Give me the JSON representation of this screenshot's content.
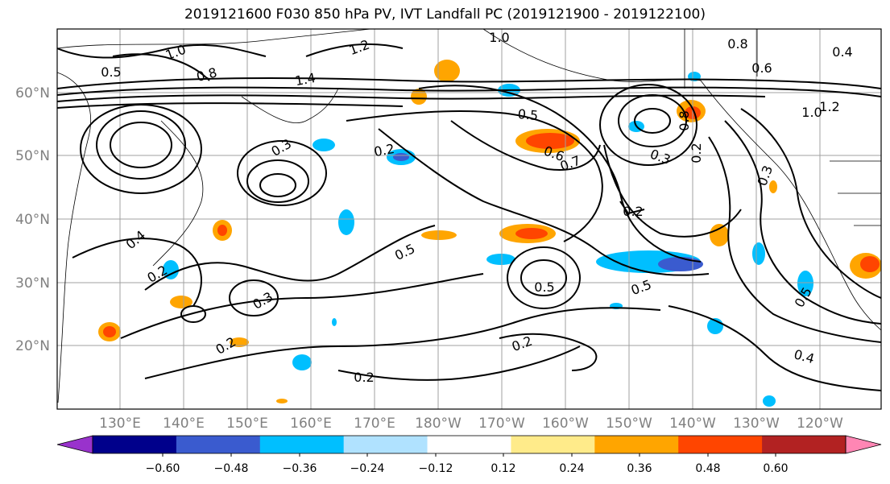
{
  "title": "2019121600 F030 850 hPa PV, IVT Landfall PC (2019121900 - 2019122100)",
  "lon_labels": [
    "130°E",
    "140°E",
    "150°E",
    "160°E",
    "170°E",
    "180°W",
    "170°W",
    "160°W",
    "150°W",
    "140°W",
    "130°W",
    "120°W"
  ],
  "lat_labels": [
    "60°N",
    "50°N",
    "40°N",
    "30°N",
    "20°N"
  ],
  "colorbar": {
    "labels": [
      "−0.60",
      "−0.48",
      "−0.36",
      "−0.24",
      "−0.12",
      "0.12",
      "0.24",
      "0.36",
      "0.48",
      "0.60"
    ],
    "colors": [
      "#9932cc",
      "#00008b",
      "#3a5bcf",
      "#00bfff",
      "#b0e2ff",
      "#ffffff",
      "#ffeb8a",
      "#ffa500",
      "#ff4500",
      "#b22222",
      "#ff86b4"
    ]
  },
  "contour_labels": [
    "1.0",
    "1.2",
    "0.8",
    "1.4",
    "0.5",
    "0.2",
    "0.3",
    "0.7",
    "0.4",
    "0.5",
    "0.3",
    "0.2",
    "0.3",
    "0.2",
    "0.2",
    "0.5",
    "0.5",
    "0.2",
    "0.2",
    "0.4",
    "0.5",
    "1.0",
    "1.2",
    "0.8",
    "0.6",
    "1.0",
    "0.8",
    "0.6",
    "0.4",
    "0.3",
    "0.2",
    "0.5"
  ]
}
